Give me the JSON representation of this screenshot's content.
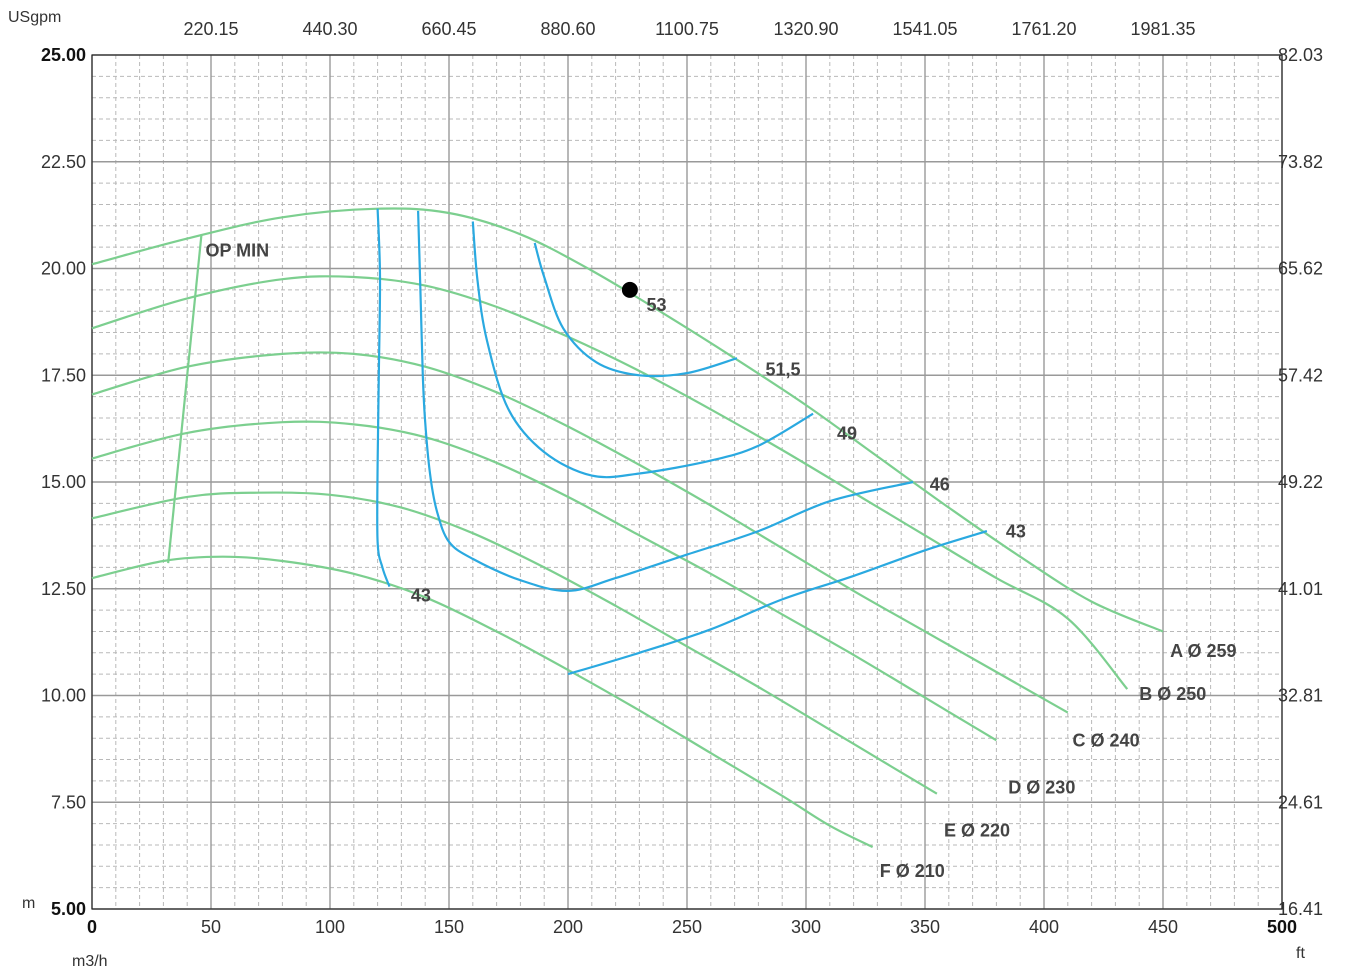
{
  "chart_data": {
    "type": "line",
    "grid": true,
    "axes": {
      "x": {
        "unit": "m3/h",
        "range": [
          0,
          500
        ],
        "ticks": [
          "0",
          "50",
          "100",
          "150",
          "200",
          "250",
          "300",
          "350",
          "400",
          "450",
          "500"
        ]
      },
      "x_top": {
        "unit": "",
        "ticks": [
          "220.15",
          "440.30",
          "660.45",
          "880.60",
          "1100.75",
          "1320.90",
          "1541.05",
          "1761.20",
          "1981.35"
        ]
      },
      "y_left": {
        "unit": "m",
        "range": [
          5,
          25
        ],
        "ticks": [
          "5.00",
          "7.50",
          "10.00",
          "12.50",
          "15.00",
          "17.50",
          "20.00",
          "22.50",
          "25.00"
        ]
      },
      "y_right": {
        "unit": "ft",
        "ticks": [
          "16.41",
          "24.61",
          "32.81",
          "41.01",
          "49.22",
          "57.42",
          "65.62",
          "73.82",
          "82.03"
        ]
      },
      "top_left_unit": "USgpm"
    },
    "head_curves": [
      {
        "name": "A Ø 259",
        "points": [
          [
            0,
            20.1
          ],
          [
            40,
            20.7
          ],
          [
            80,
            21.2
          ],
          [
            120,
            21.4
          ],
          [
            150,
            21.3
          ],
          [
            180,
            20.8
          ],
          [
            210,
            19.95
          ],
          [
            240,
            18.95
          ],
          [
            270,
            17.9
          ],
          [
            300,
            16.8
          ],
          [
            330,
            15.6
          ],
          [
            360,
            14.4
          ],
          [
            390,
            13.25
          ],
          [
            420,
            12.2
          ],
          [
            450,
            11.5
          ]
        ]
      },
      {
        "name": "B Ø 250",
        "points": [
          [
            0,
            18.6
          ],
          [
            40,
            19.3
          ],
          [
            80,
            19.75
          ],
          [
            110,
            19.8
          ],
          [
            140,
            19.6
          ],
          [
            170,
            19.1
          ],
          [
            200,
            18.4
          ],
          [
            230,
            17.6
          ],
          [
            260,
            16.7
          ],
          [
            290,
            15.75
          ],
          [
            320,
            14.75
          ],
          [
            350,
            13.75
          ],
          [
            380,
            12.75
          ],
          [
            410,
            11.8
          ],
          [
            435,
            10.15
          ]
        ]
      },
      {
        "name": "C Ø 240",
        "points": [
          [
            0,
            17.05
          ],
          [
            40,
            17.7
          ],
          [
            80,
            18.0
          ],
          [
            110,
            18.0
          ],
          [
            140,
            17.7
          ],
          [
            170,
            17.1
          ],
          [
            200,
            16.3
          ],
          [
            230,
            15.4
          ],
          [
            260,
            14.45
          ],
          [
            290,
            13.45
          ],
          [
            320,
            12.45
          ],
          [
            350,
            11.5
          ],
          [
            380,
            10.55
          ],
          [
            410,
            9.6
          ]
        ]
      },
      {
        "name": "D Ø 230",
        "points": [
          [
            0,
            15.55
          ],
          [
            40,
            16.15
          ],
          [
            80,
            16.4
          ],
          [
            110,
            16.35
          ],
          [
            140,
            16.05
          ],
          [
            170,
            15.45
          ],
          [
            200,
            14.65
          ],
          [
            230,
            13.75
          ],
          [
            260,
            12.85
          ],
          [
            290,
            11.9
          ],
          [
            320,
            10.95
          ],
          [
            350,
            9.95
          ],
          [
            380,
            8.95
          ]
        ]
      },
      {
        "name": "E Ø 220",
        "points": [
          [
            0,
            14.15
          ],
          [
            40,
            14.65
          ],
          [
            70,
            14.75
          ],
          [
            100,
            14.7
          ],
          [
            130,
            14.4
          ],
          [
            160,
            13.8
          ],
          [
            190,
            13.0
          ],
          [
            220,
            12.1
          ],
          [
            250,
            11.15
          ],
          [
            280,
            10.2
          ],
          [
            310,
            9.2
          ],
          [
            340,
            8.2
          ],
          [
            355,
            7.7
          ]
        ]
      },
      {
        "name": "F Ø 210",
        "points": [
          [
            0,
            12.75
          ],
          [
            30,
            13.15
          ],
          [
            55,
            13.25
          ],
          [
            80,
            13.15
          ],
          [
            110,
            12.85
          ],
          [
            140,
            12.3
          ],
          [
            170,
            11.5
          ],
          [
            200,
            10.6
          ],
          [
            230,
            9.65
          ],
          [
            260,
            8.65
          ],
          [
            290,
            7.65
          ],
          [
            310,
            6.95
          ],
          [
            328,
            6.45
          ]
        ]
      }
    ],
    "op_min": {
      "label": "OP MIN",
      "points": [
        [
          46,
          20.8
        ],
        [
          32,
          13.1
        ]
      ]
    },
    "efficiency_curves": [
      {
        "name": "43",
        "points": [
          [
            120,
            21.4
          ],
          [
            121,
            19.8
          ],
          [
            120.5,
            17.5
          ],
          [
            120,
            15.4
          ],
          [
            120,
            13.6
          ],
          [
            122,
            13.0
          ],
          [
            125,
            12.55
          ]
        ]
      },
      {
        "name": "43",
        "points": [
          [
            137,
            21.35
          ],
          [
            138,
            19.5
          ],
          [
            139,
            17.5
          ],
          [
            140,
            16.4
          ],
          [
            142,
            15.2
          ],
          [
            145,
            14.3
          ],
          [
            150,
            13.6
          ],
          [
            160,
            13.2
          ],
          [
            180,
            12.7
          ],
          [
            200,
            12.45
          ],
          [
            220,
            12.75
          ],
          [
            250,
            13.3
          ],
          [
            280,
            13.85
          ],
          [
            310,
            14.55
          ],
          [
            345,
            15.0
          ]
        ]
      },
      {
        "name": "46",
        "points": [
          [
            200,
            10.5
          ],
          [
            230,
            11.0
          ],
          [
            260,
            11.55
          ],
          [
            290,
            12.25
          ],
          [
            320,
            12.8
          ],
          [
            350,
            13.4
          ],
          [
            376,
            13.85
          ]
        ]
      },
      {
        "name": "49",
        "points": [
          [
            160,
            21.1
          ],
          [
            162,
            19.7
          ],
          [
            166,
            18.3
          ],
          [
            175,
            16.7
          ],
          [
            190,
            15.7
          ],
          [
            210,
            15.15
          ],
          [
            230,
            15.2
          ],
          [
            260,
            15.5
          ],
          [
            280,
            15.85
          ],
          [
            303,
            16.6
          ]
        ]
      },
      {
        "name": "51.5",
        "points": [
          [
            186,
            20.6
          ],
          [
            190,
            19.8
          ],
          [
            198,
            18.6
          ],
          [
            212,
            17.8
          ],
          [
            230,
            17.5
          ],
          [
            250,
            17.55
          ],
          [
            271,
            17.9
          ]
        ]
      }
    ],
    "efficiency_labels": [
      {
        "text": "43",
        "at": [
          134,
          12.2
        ]
      },
      {
        "text": "43",
        "at": [
          384,
          13.7
        ]
      },
      {
        "text": "46",
        "at": [
          352,
          14.8
        ]
      },
      {
        "text": "49",
        "at": [
          313,
          16.0
        ]
      },
      {
        "text": "51,5",
        "at": [
          283,
          17.5
        ]
      },
      {
        "text": "53",
        "at": [
          233,
          19.0
        ]
      }
    ],
    "operating_point": {
      "x": 226,
      "y": 19.5
    },
    "head_curve_label_anchor": [
      [
        453,
        10.9
      ],
      [
        440,
        9.9
      ],
      [
        412,
        8.8
      ],
      [
        385,
        7.7
      ],
      [
        358,
        6.7
      ],
      [
        331,
        5.75
      ]
    ],
    "legend": "none"
  }
}
